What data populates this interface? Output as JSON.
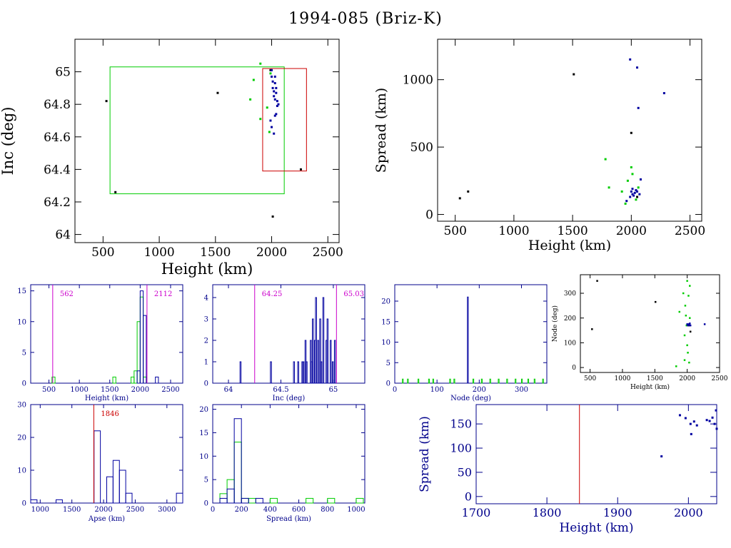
{
  "page": {
    "title": "1994-085 (Briz-K)"
  },
  "colors": {
    "black": "#000000",
    "blue": "#0000a0",
    "green": "#00cc00",
    "red": "#cc0000",
    "magenta": "#cc00cc",
    "axis_dark_blue": "#00008b"
  },
  "chart_data": [
    {
      "type": "scatter",
      "xlabel": "Height (km)",
      "ylabel": "Inc (deg)",
      "xlim": [
        250,
        2600
      ],
      "ylim": [
        63.95,
        65.2
      ],
      "xticks": [
        "500",
        "1000",
        "1500",
        "2000",
        "2500"
      ],
      "yticks": [
        "64",
        "64.2",
        "64.4",
        "64.6",
        "64.8",
        "65"
      ],
      "boxes": [
        {
          "color": "green",
          "x0": 562,
          "x1": 2112,
          "y0": 64.25,
          "y1": 65.03
        },
        {
          "color": "red",
          "x0": 1920,
          "x1": 2310,
          "y0": 64.39,
          "y1": 65.02
        }
      ],
      "series": [
        {
          "color": "black",
          "points": [
            [
              530,
              64.82
            ],
            [
              610,
              64.26
            ],
            [
              1520,
              64.87
            ],
            [
              1990,
              65.01
            ],
            [
              2010,
              64.11
            ],
            [
              2260,
              64.4
            ]
          ]
        },
        {
          "color": "green",
          "points": [
            [
              1810,
              64.83
            ],
            [
              1840,
              64.95
            ],
            [
              1900,
              65.05
            ],
            [
              1900,
              64.71
            ],
            [
              1960,
              64.78
            ],
            [
              1980,
              64.63
            ],
            [
              1990,
              64.99
            ]
          ]
        },
        {
          "color": "blue",
          "points": [
            [
              2000,
              65.01
            ],
            [
              2000,
              64.97
            ],
            [
              2010,
              64.94
            ],
            [
              2010,
              64.9
            ],
            [
              2020,
              64.88
            ],
            [
              2020,
              64.85
            ],
            [
              2030,
              64.83
            ],
            [
              2030,
              64.93
            ],
            [
              2040,
              64.9
            ],
            [
              2040,
              64.87
            ],
            [
              2050,
              64.82
            ],
            [
              2050,
              64.79
            ],
            [
              2060,
              64.8
            ],
            [
              2040,
              64.74
            ],
            [
              2030,
              64.73
            ],
            [
              1990,
              64.7
            ],
            [
              2000,
              64.66
            ],
            [
              2020,
              64.62
            ],
            [
              2030,
              64.97
            ]
          ]
        }
      ]
    },
    {
      "type": "scatter",
      "xlabel": "Height (km)",
      "ylabel": "Spread (km)",
      "xlim": [
        350,
        2600
      ],
      "ylim": [
        -50,
        1300
      ],
      "xticks": [
        "500",
        "1000",
        "1500",
        "2000",
        "2500"
      ],
      "yticks": [
        "0",
        "500",
        "1000"
      ],
      "series": [
        {
          "color": "black",
          "points": [
            [
              540,
              120
            ],
            [
              610,
              170
            ],
            [
              1510,
              1040
            ],
            [
              2000,
              605
            ],
            [
              2050,
              130
            ]
          ]
        },
        {
          "color": "green",
          "points": [
            [
              1780,
              410
            ],
            [
              1810,
              200
            ],
            [
              1920,
              170
            ],
            [
              1950,
              80
            ],
            [
              1970,
              250
            ],
            [
              2000,
              350
            ],
            [
              2010,
              300
            ],
            [
              2040,
              110
            ],
            [
              2060,
              200
            ]
          ]
        },
        {
          "color": "blue",
          "points": [
            [
              1990,
              1150
            ],
            [
              2050,
              1090
            ],
            [
              2060,
              790
            ],
            [
              2280,
              900
            ],
            [
              2080,
              260
            ],
            [
              2000,
              170
            ],
            [
              2010,
              150
            ],
            [
              2020,
              140
            ],
            [
              2030,
              160
            ],
            [
              2040,
              180
            ],
            [
              2050,
              170
            ],
            [
              1960,
              100
            ],
            [
              1990,
              130
            ],
            [
              2070,
              150
            ],
            [
              2010,
              190
            ]
          ]
        }
      ]
    },
    {
      "type": "histogram",
      "xlabel": "Height (km)",
      "xlim": [
        200,
        2700
      ],
      "ylim": [
        0,
        16
      ],
      "xticks": [
        "500",
        "1000",
        "1500",
        "2000",
        "2500"
      ],
      "yticks": [
        "0",
        "5",
        "10",
        "15"
      ],
      "vlines": [
        {
          "x": 562,
          "label": "562",
          "color": "magenta",
          "label_side": "right"
        },
        {
          "x": 2112,
          "label": "2112",
          "color": "magenta",
          "label_side": "right"
        }
      ],
      "bin_width": 50,
      "series": [
        {
          "color": "green",
          "bins": [
            [
              550,
              1
            ],
            [
              1550,
              1
            ],
            [
              1850,
              1
            ],
            [
              1900,
              2
            ],
            [
              1950,
              10
            ],
            [
              2000,
              14
            ],
            [
              2050,
              1
            ]
          ]
        },
        {
          "color": "blue",
          "bins": [
            [
              1950,
              2
            ],
            [
              2000,
              15
            ],
            [
              2050,
              11
            ],
            [
              2250,
              1
            ]
          ]
        }
      ]
    },
    {
      "type": "histogram",
      "xlabel": "Inc (deg)",
      "xlim": [
        63.85,
        65.3
      ],
      "ylim": [
        0,
        4.6
      ],
      "xticks": [
        "64",
        "64.5",
        "65"
      ],
      "yticks": [
        "0",
        "1",
        "2",
        "3",
        "4"
      ],
      "vlines": [
        {
          "x": 64.25,
          "label": "64.25",
          "color": "magenta",
          "label_side": "right"
        },
        {
          "x": 65.03,
          "label": "65.03",
          "color": "magenta",
          "label_side": "right"
        }
      ],
      "bin_width": 0.01,
      "series": [
        {
          "color": "blue",
          "bins": [
            [
              64.11,
              1
            ],
            [
              64.4,
              1
            ],
            [
              64.62,
              1
            ],
            [
              64.66,
              1
            ],
            [
              64.7,
              1
            ],
            [
              64.71,
              1
            ],
            [
              64.73,
              2
            ],
            [
              64.74,
              1
            ],
            [
              64.78,
              2
            ],
            [
              64.79,
              1
            ],
            [
              64.8,
              3
            ],
            [
              64.82,
              2
            ],
            [
              64.83,
              4
            ],
            [
              64.85,
              2
            ],
            [
              64.87,
              3
            ],
            [
              64.88,
              1
            ],
            [
              64.9,
              4
            ],
            [
              64.93,
              2
            ],
            [
              64.94,
              3
            ],
            [
              64.97,
              2
            ],
            [
              64.99,
              1
            ],
            [
              65.01,
              2
            ]
          ]
        }
      ]
    },
    {
      "type": "histogram",
      "xlabel": "Node (deg)",
      "xlim": [
        0,
        360
      ],
      "ylim": [
        0,
        24
      ],
      "xticks": [
        "0",
        "100",
        "200",
        "300"
      ],
      "yticks": [
        "0",
        "5",
        "10",
        "15",
        "20"
      ],
      "bin_width": 2,
      "series": [
        {
          "color": "green",
          "bins": [
            [
              18,
              1
            ],
            [
              30,
              1
            ],
            [
              55,
              1
            ],
            [
              80,
              1
            ],
            [
              90,
              1
            ],
            [
              130,
              1
            ],
            [
              140,
              1
            ],
            [
              185,
              1
            ],
            [
              205,
              1
            ],
            [
              225,
              1
            ],
            [
              245,
              1
            ],
            [
              265,
              1
            ],
            [
              285,
              1
            ],
            [
              300,
              1
            ],
            [
              315,
              1
            ],
            [
              330,
              1
            ],
            [
              350,
              1
            ]
          ]
        },
        {
          "color": "blue",
          "bins": [
            [
              172,
              21
            ]
          ]
        }
      ]
    },
    {
      "type": "scatter",
      "xlabel": "Height (km)",
      "ylabel": "Node (deg)",
      "xlim": [
        350,
        2500
      ],
      "ylim": [
        -20,
        375
      ],
      "xticks": [
        "500",
        "1000",
        "1500",
        "2000",
        "2500"
      ],
      "yticks": [
        "0",
        "100",
        "200",
        "300"
      ],
      "series": [
        {
          "color": "black",
          "points": [
            [
              530,
              155
            ],
            [
              610,
              350
            ],
            [
              1510,
              265
            ],
            [
              2030,
              170
            ],
            [
              2050,
              145
            ]
          ]
        },
        {
          "color": "green",
          "points": [
            [
              1880,
              225
            ],
            [
              1940,
              300
            ],
            [
              1960,
              130
            ],
            [
              1960,
              30
            ],
            [
              1970,
              250
            ],
            [
              1980,
              210
            ],
            [
              1990,
              170
            ],
            [
              2000,
              350
            ],
            [
              2000,
              90
            ],
            [
              2010,
              60
            ],
            [
              2020,
              290
            ],
            [
              2030,
              20
            ],
            [
              2040,
              330
            ],
            [
              2040,
              200
            ],
            [
              1830,
              5
            ]
          ]
        },
        {
          "color": "blue",
          "points": [
            [
              2000,
              175
            ],
            [
              2010,
              170
            ],
            [
              2020,
              175
            ],
            [
              2030,
              172
            ],
            [
              2040,
              178
            ],
            [
              2050,
              170
            ],
            [
              2270,
              175
            ]
          ]
        }
      ]
    },
    {
      "type": "histogram",
      "xlabel": "Apse (km)",
      "xlim": [
        850,
        3250
      ],
      "ylim": [
        0,
        30
      ],
      "xticks": [
        "1000",
        "1500",
        "2000",
        "2500",
        "3000"
      ],
      "yticks": [
        "0",
        "10",
        "20",
        "30"
      ],
      "vlines": [
        {
          "x": 1846,
          "label": "1846",
          "color": "red",
          "label_side": "right"
        }
      ],
      "bin_width": 100,
      "series": [
        {
          "color": "blue",
          "bins": [
            [
              850,
              1
            ],
            [
              1250,
              1
            ],
            [
              1850,
              22
            ],
            [
              2050,
              8
            ],
            [
              2150,
              13
            ],
            [
              2250,
              10
            ],
            [
              2350,
              3
            ],
            [
              3150,
              3
            ]
          ]
        }
      ]
    },
    {
      "type": "histogram",
      "xlabel": "Spread (km)",
      "xlim": [
        0,
        1060
      ],
      "ylim": [
        0,
        21
      ],
      "xticks": [
        "0",
        "200",
        "400",
        "600",
        "800",
        "1000"
      ],
      "yticks": [
        "0",
        "5",
        "10",
        "15",
        "20"
      ],
      "bin_width": 50,
      "series": [
        {
          "color": "green",
          "bins": [
            [
              50,
              2
            ],
            [
              100,
              5
            ],
            [
              150,
              13
            ],
            [
              200,
              1
            ],
            [
              250,
              1
            ],
            [
              400,
              1
            ],
            [
              650,
              1
            ],
            [
              800,
              1
            ],
            [
              1000,
              1
            ]
          ]
        },
        {
          "color": "blue",
          "bins": [
            [
              50,
              1
            ],
            [
              100,
              3
            ],
            [
              150,
              18
            ],
            [
              200,
              1
            ],
            [
              300,
              1
            ]
          ]
        }
      ]
    },
    {
      "type": "scatter",
      "xlabel": "Height (km)",
      "ylabel": "Spread (km)",
      "xlim": [
        1700,
        2040
      ],
      "ylim": [
        -15,
        190
      ],
      "xticks": [
        "1700",
        "1800",
        "1900",
        "2000"
      ],
      "yticks": [
        "0",
        "50",
        "100",
        "150"
      ],
      "vlines": [
        {
          "x": 1846,
          "color": "red"
        }
      ],
      "series": [
        {
          "color": "blue",
          "points": [
            [
              1962,
              83
            ],
            [
              1988,
              168
            ],
            [
              1996,
              162
            ],
            [
              2003,
              150
            ],
            [
              2004,
              129
            ],
            [
              2008,
              155
            ],
            [
              2012,
              147
            ],
            [
              2026,
              158
            ],
            [
              2030,
              156
            ],
            [
              2034,
              163
            ],
            [
              2037,
              150
            ],
            [
              2039,
              178
            ],
            [
              2040,
              140
            ]
          ]
        }
      ]
    }
  ]
}
